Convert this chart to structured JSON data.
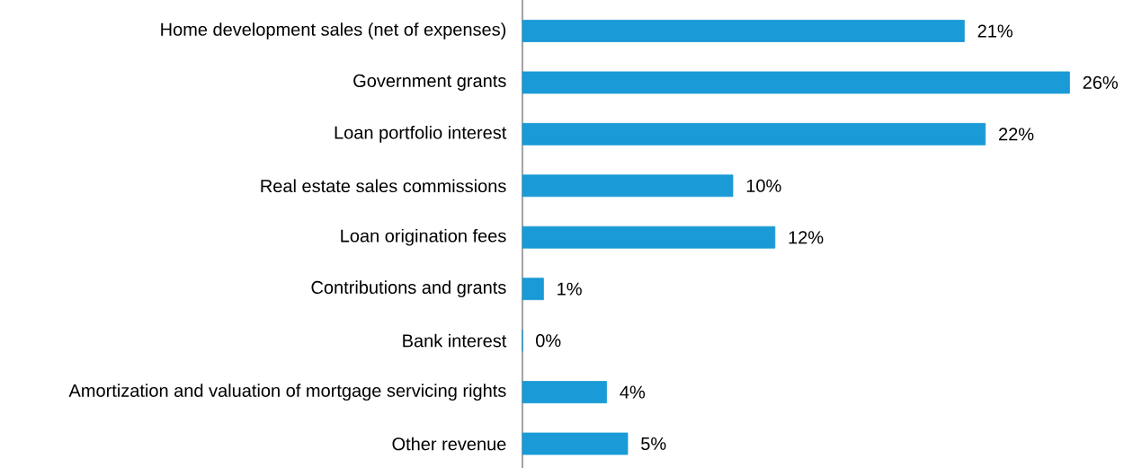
{
  "chart_data": {
    "type": "bar",
    "orientation": "horizontal",
    "categories": [
      "Home development sales (net of expenses)",
      "Government grants",
      "Loan portfolio interest",
      "Real estate sales commissions",
      "Loan origination fees",
      "Contributions and grants",
      "Bank interest",
      "Amortization and valuation of mortgage servicing rights",
      "Other revenue"
    ],
    "values": [
      21,
      26,
      22,
      10,
      12,
      1,
      0,
      4,
      5
    ],
    "value_labels": [
      "21%",
      "26%",
      "22%",
      "10%",
      "12%",
      "1%",
      "0%",
      "4%",
      "5%"
    ],
    "color": "#1a9ad6"
  }
}
